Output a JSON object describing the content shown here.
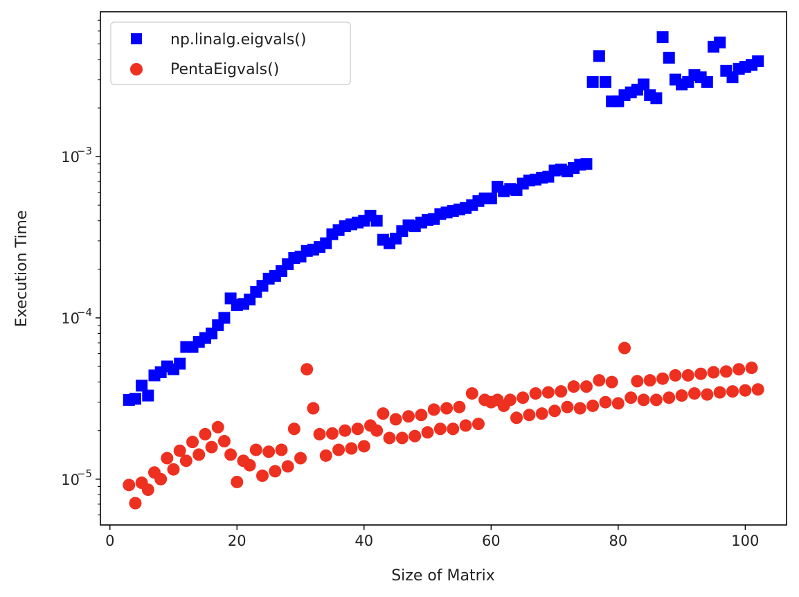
{
  "chart_data": {
    "type": "scatter",
    "title": "",
    "xlabel": "Size of Matrix",
    "ylabel": "Execution Time",
    "xlim": [
      -1.5,
      106.5
    ],
    "ylim": [
      5.2e-06,
      0.0079
    ],
    "yscale": "log",
    "grid": false,
    "legend_position": "top-left",
    "x_ticks": [
      0,
      20,
      40,
      60,
      80,
      100
    ],
    "x_tick_labels": [
      "0",
      "20",
      "40",
      "60",
      "80",
      "100"
    ],
    "y_ticks": [
      1e-05,
      0.0001,
      0.001
    ],
    "y_tick_labels": [
      {
        "base": "10",
        "exp": "−5"
      },
      {
        "base": "10",
        "exp": "−4"
      },
      {
        "base": "10",
        "exp": "−3"
      }
    ],
    "series": [
      {
        "name": "np.linalg.eigvals()",
        "marker": "square",
        "color": "#0000ff",
        "x": [
          3,
          4,
          5,
          6,
          7,
          8,
          9,
          10,
          11,
          12,
          13,
          14,
          15,
          16,
          17,
          18,
          19,
          20,
          21,
          22,
          23,
          24,
          25,
          26,
          27,
          28,
          29,
          30,
          31,
          32,
          33,
          34,
          35,
          36,
          37,
          38,
          39,
          40,
          41,
          42,
          43,
          44,
          45,
          46,
          47,
          48,
          49,
          50,
          51,
          52,
          53,
          54,
          55,
          56,
          57,
          58,
          59,
          60,
          61,
          62,
          63,
          64,
          65,
          66,
          67,
          68,
          69,
          70,
          71,
          72,
          73,
          74,
          75,
          76,
          77,
          78,
          79,
          80,
          81,
          82,
          83,
          84,
          85,
          86,
          87,
          88,
          89,
          90,
          91,
          92,
          93,
          94,
          95,
          96,
          97,
          98,
          99,
          100,
          101,
          102
        ],
        "y": [
          3.1e-05,
          3.15e-05,
          3.8e-05,
          3.3e-05,
          4.4e-05,
          4.6e-05,
          5e-05,
          4.8e-05,
          5.2e-05,
          6.6e-05,
          6.6e-05,
          7.1e-05,
          7.5e-05,
          8e-05,
          9e-05,
          0.0001,
          0.000132,
          0.00012,
          0.000122,
          0.00013,
          0.000145,
          0.000158,
          0.000175,
          0.000182,
          0.000195,
          0.000215,
          0.000235,
          0.00024,
          0.00026,
          0.000265,
          0.000275,
          0.00029,
          0.00033,
          0.00035,
          0.00037,
          0.00038,
          0.00039,
          0.0004,
          0.00043,
          0.0004,
          0.000305,
          0.00029,
          0.00031,
          0.000345,
          0.000375,
          0.00037,
          0.00039,
          0.000405,
          0.00041,
          0.00044,
          0.00045,
          0.00046,
          0.00047,
          0.00048,
          0.0005,
          0.00053,
          0.00055,
          0.00055,
          0.00065,
          0.00061,
          0.00063,
          0.00062,
          0.00068,
          0.00071,
          0.00072,
          0.00074,
          0.00075,
          0.00082,
          0.00083,
          0.00081,
          0.00085,
          0.00089,
          0.0009,
          0.0029,
          0.0042,
          0.0029,
          0.0022,
          0.0022,
          0.0024,
          0.0025,
          0.0026,
          0.0028,
          0.0024,
          0.0023,
          0.0055,
          0.0041,
          0.003,
          0.0028,
          0.0029,
          0.0032,
          0.0031,
          0.0029,
          0.0048,
          0.0051,
          0.0034,
          0.0031,
          0.0035,
          0.0036,
          0.0037,
          0.0039
        ]
      },
      {
        "name": "PentaEigvals()",
        "marker": "circle",
        "color": "#ee3020",
        "x": [
          3,
          4,
          5,
          6,
          7,
          8,
          9,
          10,
          11,
          12,
          13,
          14,
          15,
          16,
          17,
          18,
          19,
          20,
          21,
          22,
          23,
          24,
          25,
          26,
          27,
          28,
          29,
          30,
          31,
          32,
          33,
          34,
          35,
          36,
          37,
          38,
          39,
          40,
          41,
          42,
          43,
          44,
          45,
          46,
          47,
          48,
          49,
          50,
          51,
          52,
          53,
          54,
          55,
          56,
          57,
          58,
          59,
          60,
          61,
          62,
          63,
          64,
          65,
          66,
          67,
          68,
          69,
          70,
          71,
          72,
          73,
          74,
          75,
          76,
          77,
          78,
          79,
          80,
          81,
          82,
          83,
          84,
          85,
          86,
          87,
          88,
          89,
          90,
          91,
          92,
          93,
          94,
          95,
          96,
          97,
          98,
          99,
          100,
          101,
          102
        ],
        "y": [
          9.2e-06,
          7.1e-06,
          9.5e-06,
          8.6e-06,
          1.1e-05,
          1e-05,
          1.35e-05,
          1.15e-05,
          1.5e-05,
          1.3e-05,
          1.7e-05,
          1.42e-05,
          1.9e-05,
          1.58e-05,
          2.1e-05,
          1.72e-05,
          1.42e-05,
          9.6e-06,
          1.3e-05,
          1.22e-05,
          1.52e-05,
          1.05e-05,
          1.48e-05,
          1.12e-05,
          1.52e-05,
          1.2e-05,
          2.05e-05,
          1.35e-05,
          4.8e-05,
          2.75e-05,
          1.9e-05,
          1.4e-05,
          1.92e-05,
          1.52e-05,
          2e-05,
          1.55e-05,
          2.05e-05,
          1.6e-05,
          2.15e-05,
          2e-05,
          2.55e-05,
          1.8e-05,
          2.35e-05,
          1.8e-05,
          2.45e-05,
          1.85e-05,
          2.5e-05,
          1.95e-05,
          2.7e-05,
          2.05e-05,
          2.75e-05,
          2.05e-05,
          2.8e-05,
          2.15e-05,
          3.4e-05,
          2.2e-05,
          3.1e-05,
          3e-05,
          3.1e-05,
          2.85e-05,
          3.1e-05,
          2.4e-05,
          3.2e-05,
          2.5e-05,
          3.4e-05,
          2.55e-05,
          3.45e-05,
          2.65e-05,
          3.5e-05,
          2.8e-05,
          3.75e-05,
          2.75e-05,
          3.75e-05,
          2.85e-05,
          4.1e-05,
          3e-05,
          4e-05,
          2.95e-05,
          6.5e-05,
          3.2e-05,
          4.05e-05,
          3.1e-05,
          4.1e-05,
          3.1e-05,
          4.2e-05,
          3.2e-05,
          4.4e-05,
          3.3e-05,
          4.4e-05,
          3.4e-05,
          4.5e-05,
          3.35e-05,
          4.6e-05,
          3.45e-05,
          4.65e-05,
          3.5e-05,
          4.8e-05,
          3.55e-05,
          4.9e-05,
          3.6e-05
        ]
      }
    ]
  }
}
